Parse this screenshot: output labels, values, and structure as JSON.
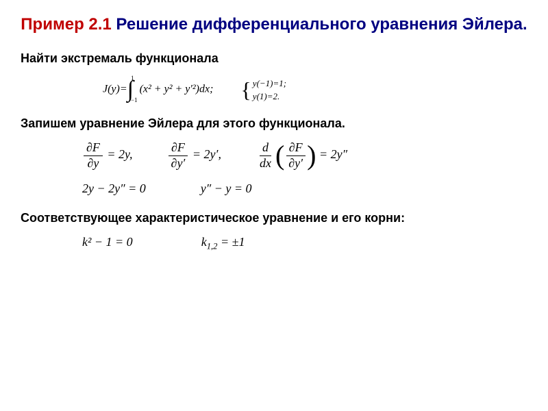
{
  "title": {
    "prefix": "Пример 2.1",
    "main": " Решение дифференциального уравнения Эйлера."
  },
  "heading1": "Найти экстремаль функционала",
  "problem": {
    "lhs": "J(y)=",
    "int_top": "1",
    "int_bot": "−1",
    "integrand": "(x² + y² + y′²)dx;",
    "bc1": "y(−1)=1;",
    "bc2": "y(1)=2."
  },
  "heading2": "Запишем уравнение Эйлера для этого функционала.",
  "euler_partials": {
    "p1_num": "∂F",
    "p1_den": "∂y",
    "p1_rhs": " = 2y,",
    "p2_num": "∂F",
    "p2_den": "∂y′",
    "p2_rhs": " = 2y′,",
    "p3_outer_num": "d",
    "p3_outer_den": "dx",
    "p3_inner_num": "∂F",
    "p3_inner_den": "∂y′",
    "p3_rhs": " = 2y″"
  },
  "euler_eq": {
    "eq1": "2y − 2y″ = 0",
    "eq2": "y″ − y = 0"
  },
  "heading3": "Соответствующее характеристическое уравнение и его корни:",
  "char_eq": {
    "eq1": "k² − 1 = 0",
    "eq2_lhs": "k",
    "eq2_sub": "1,2",
    "eq2_rhs": " = ±1"
  }
}
